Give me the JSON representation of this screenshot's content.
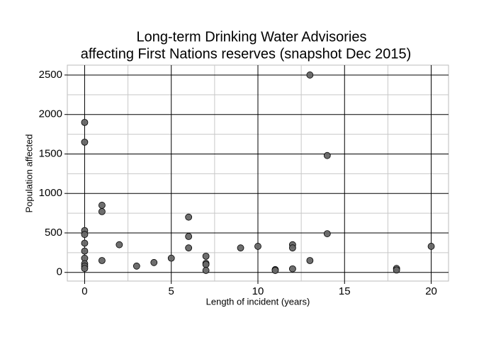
{
  "chart_data": {
    "type": "scatter",
    "title": [
      "Long-term Drinking Water Advisories",
      "affecting First Nations reserves (snapshot Dec 2015)"
    ],
    "x_label": "Length of incident (years)",
    "y_label": "Population affected",
    "x": [
      0,
      0,
      0,
      0,
      0,
      0,
      0,
      0,
      0,
      0,
      1,
      1,
      1,
      2,
      3,
      4,
      5,
      6,
      6,
      6,
      7,
      7,
      7,
      7,
      9,
      10,
      11,
      11,
      12,
      12,
      12,
      13,
      13,
      14,
      14,
      18,
      18,
      20
    ],
    "values": [
      1900,
      1650,
      530,
      480,
      370,
      270,
      180,
      110,
      80,
      50,
      850,
      770,
      150,
      350,
      80,
      125,
      180,
      700,
      455,
      310,
      205,
      115,
      100,
      25,
      310,
      330,
      35,
      25,
      350,
      310,
      45,
      2500,
      150,
      1480,
      490,
      50,
      30,
      330
    ],
    "color": "#666666",
    "xlim": [
      -1,
      21
    ],
    "xticks": [
      0,
      5,
      10,
      15,
      20
    ],
    "ylim": [
      -110,
      2625
    ],
    "yticks": [
      0,
      500,
      1000,
      1500,
      2000,
      2500
    ],
    "grid": true
  }
}
